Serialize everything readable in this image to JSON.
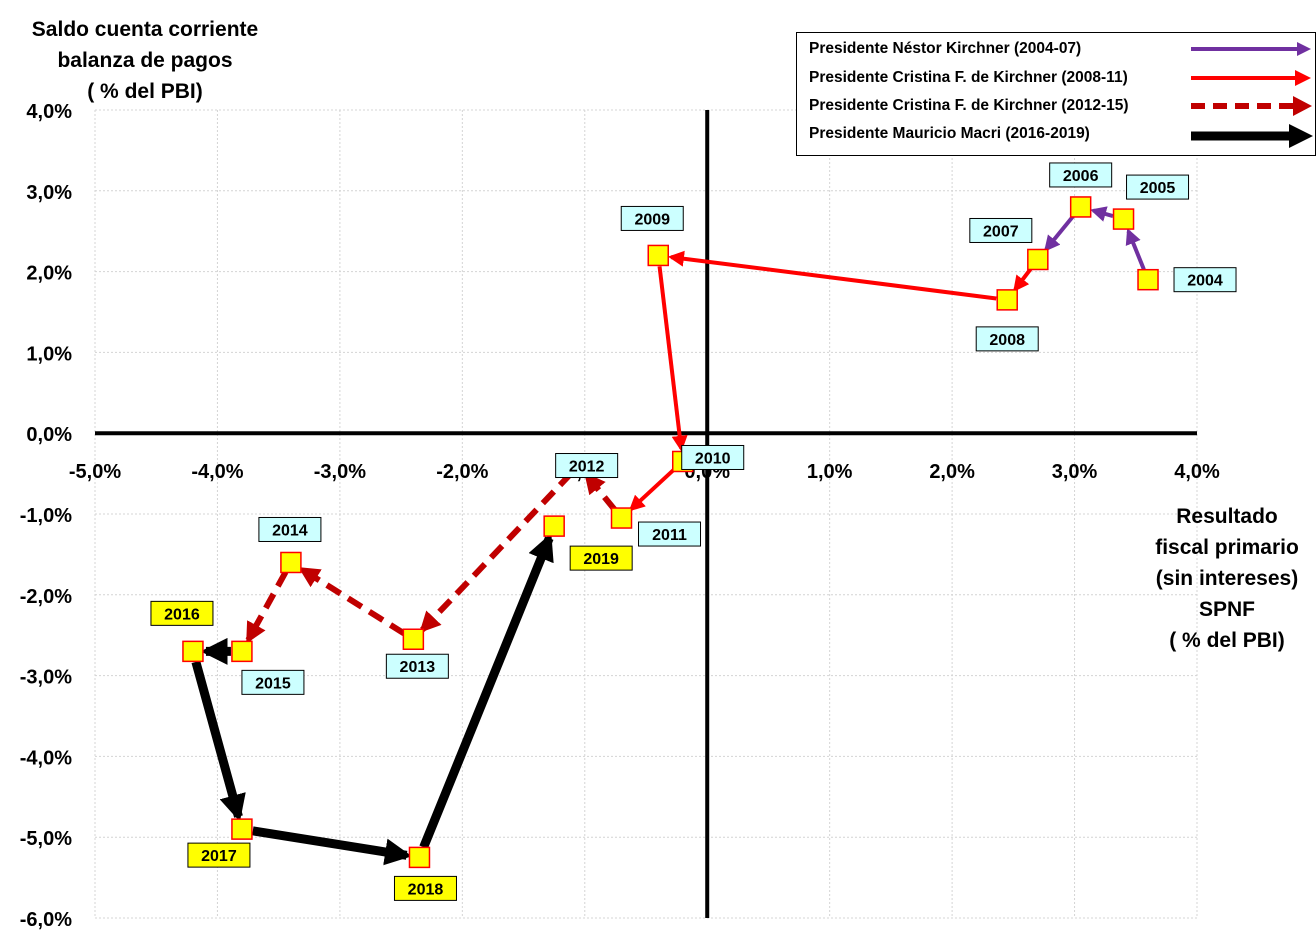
{
  "chart_data": {
    "type": "scatter",
    "title": "",
    "ylabel": [
      "Saldo cuenta corriente",
      "balanza de pagos",
      "( % del PBI)"
    ],
    "xlabel": [
      "Resultado",
      "fiscal primario",
      "(sin intereses)",
      "SPNF",
      "( % del PBI)"
    ],
    "xlim": [
      -5.0,
      4.0
    ],
    "ylim": [
      -6.0,
      4.0
    ],
    "x_ticks": [
      -5,
      -4,
      -3,
      -2,
      -1,
      0,
      1,
      2,
      3,
      4
    ],
    "y_ticks": [
      4,
      3,
      2,
      1,
      0,
      -1,
      -2,
      -3,
      -4,
      -5,
      -6
    ],
    "x_tick_labels": [
      "-5,0%",
      "-4,0%",
      "-3,0%",
      "-2,0%",
      "-1,0%",
      "0,0%",
      "1,0%",
      "2,0%",
      "3,0%",
      "4,0%"
    ],
    "y_tick_labels": [
      "4,0%",
      "3,0%",
      "2,0%",
      "1,0%",
      "0,0%",
      "-1,0%",
      "-2,0%",
      "-3,0%",
      "-4,0%",
      "-5,0%",
      "-6,0%"
    ],
    "grid": true,
    "legend_position": "top-right",
    "points": [
      {
        "year": "2004",
        "x": 3.6,
        "y": 1.9
      },
      {
        "year": "2005",
        "x": 3.4,
        "y": 2.65
      },
      {
        "year": "2006",
        "x": 3.05,
        "y": 2.8
      },
      {
        "year": "2007",
        "x": 2.7,
        "y": 2.15
      },
      {
        "year": "2008",
        "x": 2.45,
        "y": 1.65
      },
      {
        "year": "2009",
        "x": -0.4,
        "y": 2.2
      },
      {
        "year": "2010",
        "x": -0.2,
        "y": -0.35
      },
      {
        "year": "2011",
        "x": -0.7,
        "y": -1.05
      },
      {
        "year": "2012",
        "x": -1.05,
        "y": -0.4
      },
      {
        "year": "2013",
        "x": -2.4,
        "y": -2.55
      },
      {
        "year": "2014",
        "x": -3.4,
        "y": -1.6
      },
      {
        "year": "2015",
        "x": -3.8,
        "y": -2.7
      },
      {
        "year": "2016",
        "x": -4.2,
        "y": -2.7
      },
      {
        "year": "2017",
        "x": -3.8,
        "y": -4.9
      },
      {
        "year": "2018",
        "x": -2.35,
        "y": -5.25
      },
      {
        "year": "2019",
        "x": -1.25,
        "y": -1.15
      }
    ],
    "series": [
      {
        "name": "Presidente Néstor Kirchner (2004-07)",
        "years": [
          "2004",
          "2005",
          "2006",
          "2007"
        ],
        "color": "#7030a0",
        "style": "solid"
      },
      {
        "name": "Presidente Cristina F. de Kirchner (2008-11)",
        "years": [
          "2007",
          "2008",
          "2009",
          "2010",
          "2011"
        ],
        "color": "#ff0000",
        "style": "solid"
      },
      {
        "name": "Presidente Cristina F. de Kirchner (2012-15)",
        "years": [
          "2011",
          "2012",
          "2013",
          "2014",
          "2015"
        ],
        "color": "#c00000",
        "style": "dashed"
      },
      {
        "name": "Presidente Mauricio Macri (2016-2019)",
        "years": [
          "2015",
          "2016",
          "2017",
          "2018",
          "2019"
        ],
        "color": "#000000",
        "style": "solid"
      }
    ],
    "label_colors": {
      "cyan": "#ccffff",
      "yellow": "#ffff00",
      "marker_fill": "#ffff00",
      "marker_stroke": "#ff0000"
    }
  }
}
